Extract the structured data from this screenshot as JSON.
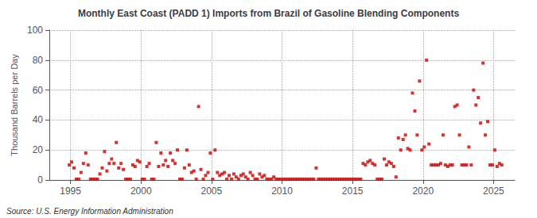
{
  "chart_data": {
    "type": "scatter",
    "title": "Monthly East Coast (PADD 1) Imports from Brazil of Gasoline Blending Components",
    "ylabel": "Thousand Barrels per Day",
    "source": "Source: U.S. Energy Information Administration",
    "color": "#cc0000",
    "marker": "square",
    "grid": true,
    "xlim": [
      1993.5,
      2026.5
    ],
    "xticks": [
      1995,
      2000,
      2005,
      2010,
      2015,
      2020,
      2025
    ],
    "ylim": [
      0,
      100
    ],
    "yticks": [
      0,
      20,
      40,
      60,
      80,
      100
    ],
    "x": [
      1994.917,
      1995.083,
      1995.25,
      1995.417,
      1995.583,
      1995.75,
      1995.917,
      1996.083,
      1996.25,
      1996.417,
      1996.583,
      1996.75,
      1996.917,
      1997.083,
      1997.25,
      1997.417,
      1997.583,
      1997.75,
      1997.917,
      1998.083,
      1998.25,
      1998.417,
      1998.583,
      1998.75,
      1998.917,
      1999.083,
      1999.25,
      1999.417,
      1999.583,
      1999.75,
      1999.917,
      2000.083,
      2000.25,
      2000.417,
      2000.583,
      2000.75,
      2000.917,
      2001.083,
      2001.25,
      2001.417,
      2001.583,
      2001.75,
      2001.917,
      2002.083,
      2002.25,
      2002.417,
      2002.583,
      2002.75,
      2002.917,
      2003.083,
      2003.25,
      2003.417,
      2003.583,
      2003.75,
      2003.917,
      2004.083,
      2004.25,
      2004.417,
      2004.583,
      2004.75,
      2004.917,
      2005.083,
      2005.25,
      2005.417,
      2005.583,
      2005.75,
      2005.917,
      2006.083,
      2006.25,
      2006.417,
      2006.583,
      2006.75,
      2006.917,
      2007.083,
      2007.25,
      2007.417,
      2007.583,
      2007.75,
      2007.917,
      2008.083,
      2008.25,
      2008.417,
      2008.583,
      2008.75,
      2008.917,
      2009.083,
      2009.25,
      2009.417,
      2009.583,
      2009.75,
      2009.917,
      2010.083,
      2010.25,
      2010.417,
      2010.583,
      2010.75,
      2010.917,
      2011.083,
      2011.25,
      2011.417,
      2011.583,
      2011.75,
      2011.917,
      2012.083,
      2012.25,
      2012.417,
      2012.583,
      2012.75,
      2012.917,
      2013.083,
      2013.25,
      2013.417,
      2013.583,
      2013.75,
      2013.917,
      2014.083,
      2014.25,
      2014.417,
      2014.583,
      2014.75,
      2014.917,
      2015.083,
      2015.25,
      2015.417,
      2015.583,
      2015.75,
      2015.917,
      2016.083,
      2016.25,
      2016.417,
      2016.583,
      2016.75,
      2016.917,
      2017.083,
      2017.25,
      2017.417,
      2017.583,
      2017.75,
      2017.917,
      2018.083,
      2018.25,
      2018.417,
      2018.583,
      2018.75,
      2018.917,
      2019.083,
      2019.25,
      2019.417,
      2019.583,
      2019.75,
      2019.917,
      2020.083,
      2020.25,
      2020.417,
      2020.583,
      2020.75,
      2020.917,
      2021.083,
      2021.25,
      2021.417,
      2021.583,
      2021.75,
      2021.917,
      2022.083,
      2022.25,
      2022.417,
      2022.583,
      2022.75,
      2022.917,
      2023.083,
      2023.25,
      2023.417,
      2023.583,
      2023.75,
      2023.917,
      2024.083,
      2024.25,
      2024.417,
      2024.583,
      2024.75,
      2024.917,
      2025.083,
      2025.25,
      2025.417,
      2025.583
    ],
    "values": [
      10,
      12,
      8,
      0.5,
      0.5,
      5,
      11,
      18,
      10,
      0.5,
      0.5,
      0.5,
      0.5,
      4,
      8,
      19,
      6,
      11,
      14,
      11,
      25,
      8,
      11,
      7,
      0.5,
      0.5,
      0.5,
      10,
      9,
      13,
      12,
      0.5,
      0.5,
      9,
      11,
      0.5,
      0.5,
      25,
      9,
      18,
      10,
      13,
      9,
      18,
      13,
      11,
      20,
      0.5,
      0.5,
      8,
      20,
      10,
      5,
      6,
      0.5,
      49,
      7,
      0.5,
      3,
      5,
      18,
      0.5,
      20,
      5,
      3,
      4,
      5,
      0.5,
      3,
      0.5,
      4,
      2,
      0.5,
      3,
      4,
      2,
      0.5,
      5,
      3,
      0.5,
      0.5,
      4,
      2,
      3,
      0.5,
      0.5,
      0.5,
      2,
      0.5,
      0.5,
      0.5,
      0.5,
      0.5,
      0.5,
      0.5,
      0.5,
      0.5,
      0.5,
      0.5,
      0.5,
      0.5,
      0.5,
      0.5,
      0.5,
      0.5,
      8,
      0.5,
      0.5,
      0.5,
      0.5,
      0.5,
      0.5,
      0.5,
      0.5,
      0.5,
      0.5,
      0.5,
      0.5,
      0.5,
      0.5,
      0.5,
      0.5,
      0.5,
      0.5,
      0.5,
      11,
      10,
      12,
      13,
      11,
      10,
      0.5,
      0.5,
      0.5,
      14,
      10,
      12,
      11,
      9,
      2,
      28,
      20,
      27,
      30,
      21,
      20,
      58,
      46,
      30,
      66,
      20,
      22,
      80,
      24,
      10,
      10,
      10,
      10,
      11,
      30,
      10,
      9,
      10,
      10,
      49,
      50,
      30,
      10,
      10,
      10,
      22,
      10,
      60,
      50,
      55,
      38,
      78,
      30,
      39,
      10,
      10,
      20,
      9,
      11,
      10
    ]
  }
}
